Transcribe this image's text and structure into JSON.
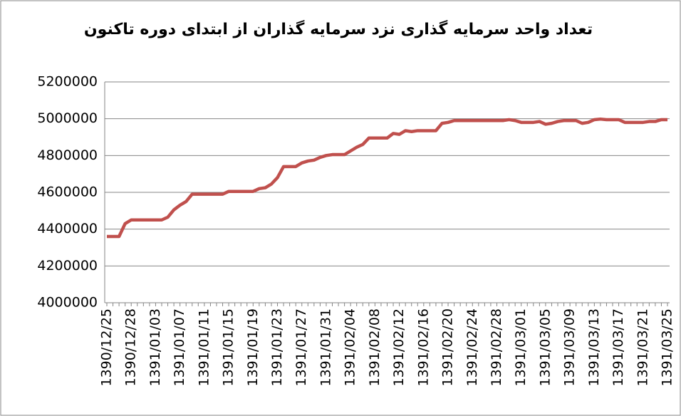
{
  "chart_data": {
    "type": "line",
    "title": "تعداد واحد سرمایه گذاری نزد سرمایه گذاران از ابتدای دوره تاکنون",
    "categories": [
      "1390/12/25",
      null,
      null,
      null,
      "1390/12/28",
      null,
      null,
      null,
      "1391/01/03",
      null,
      null,
      null,
      "1391/01/07",
      null,
      null,
      null,
      "1391/01/11",
      null,
      null,
      null,
      "1391/01/15",
      null,
      null,
      null,
      "1391/01/19",
      null,
      null,
      null,
      "1391/01/23",
      null,
      null,
      null,
      "1391/01/27",
      null,
      null,
      null,
      "1391/01/31",
      null,
      null,
      null,
      "1391/02/04",
      null,
      null,
      null,
      "1391/02/08",
      null,
      null,
      null,
      "1391/02/12",
      null,
      null,
      null,
      "1391/02/16",
      null,
      null,
      null,
      "1391/02/20",
      null,
      null,
      null,
      "1391/02/24",
      null,
      null,
      null,
      "1391/02/28",
      null,
      null,
      null,
      "1391/03/01",
      null,
      null,
      null,
      "1391/03/05",
      null,
      null,
      null,
      "1391/03/09",
      null,
      null,
      null,
      "1391/03/13",
      null,
      null,
      null,
      "1391/03/17",
      null,
      null,
      null,
      "1391/03/21",
      null,
      null,
      null,
      "1391/03/25"
    ],
    "series": [
      {
        "color": "#c0504d",
        "values": [
          4360000,
          4360000,
          4360000,
          4430000,
          4450000,
          4450000,
          4450000,
          4450000,
          4450000,
          4450000,
          4465000,
          4505000,
          4530000,
          4550000,
          4590000,
          4590000,
          4590000,
          4590000,
          4590000,
          4590000,
          4605000,
          4605000,
          4605000,
          4605000,
          4605000,
          4620000,
          4625000,
          4645000,
          4680000,
          4740000,
          4740000,
          4740000,
          4760000,
          4770000,
          4775000,
          4790000,
          4800000,
          4805000,
          4805000,
          4805000,
          4825000,
          4845000,
          4860000,
          4895000,
          4895000,
          4895000,
          4895000,
          4920000,
          4915000,
          4935000,
          4930000,
          4935000,
          4935000,
          4935000,
          4935000,
          4975000,
          4980000,
          4990000,
          4990000,
          4990000,
          4990000,
          4990000,
          4990000,
          4990000,
          4990000,
          4990000,
          4995000,
          4990000,
          4980000,
          4980000,
          4980000,
          4985000,
          4970000,
          4975000,
          4985000,
          4990000,
          4990000,
          4990000,
          4975000,
          4980000,
          4995000,
          4998000,
          4995000,
          4995000,
          4995000,
          4980000,
          4980000,
          4980000,
          4980000,
          4985000,
          4985000,
          4995000,
          4995000
        ]
      }
    ],
    "ylim": [
      4000000,
      5200000
    ],
    "yticks": [
      4000000,
      4200000,
      4400000,
      4600000,
      4800000,
      5000000,
      5200000
    ],
    "grid": true
  }
}
